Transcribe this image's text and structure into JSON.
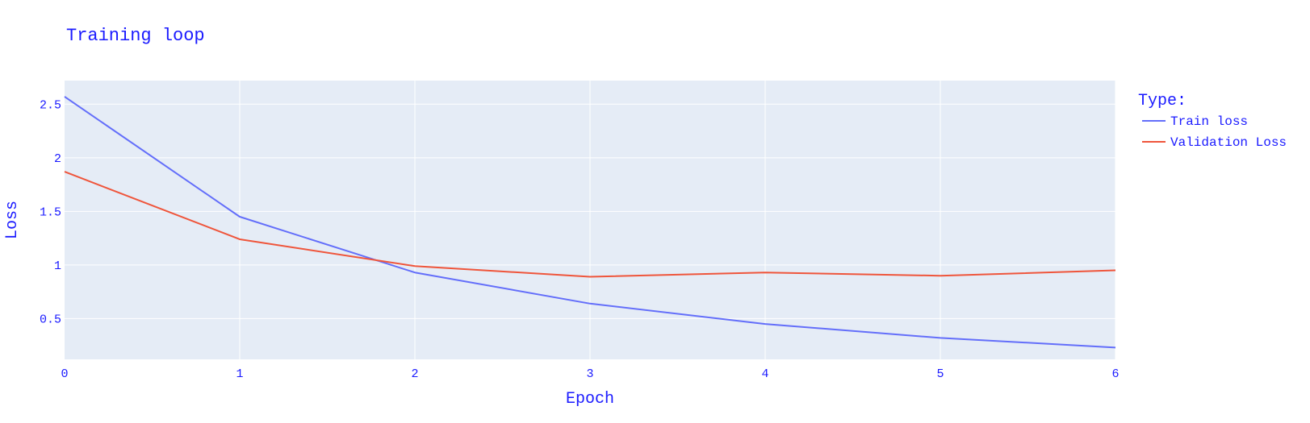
{
  "chart_data": {
    "type": "line",
    "title": "Training loop",
    "xlabel": "Epoch",
    "ylabel": "Loss",
    "xlim": [
      0,
      6
    ],
    "ylim": [
      0.12,
      2.72
    ],
    "x_ticks": [
      0,
      1,
      2,
      3,
      4,
      5,
      6
    ],
    "y_ticks": [
      0.5,
      1,
      1.5,
      2,
      2.5
    ],
    "grid": true,
    "legend": {
      "title": "Type:",
      "position": "right"
    },
    "x": [
      0,
      1,
      2,
      3,
      4,
      5,
      6
    ],
    "series": [
      {
        "name": "Train loss",
        "color": "#636efa",
        "values": [
          2.57,
          1.45,
          0.93,
          0.64,
          0.45,
          0.32,
          0.23
        ]
      },
      {
        "name": "Validation Loss",
        "color": "#ef553b",
        "values": [
          1.87,
          1.24,
          0.99,
          0.89,
          0.93,
          0.9,
          0.95
        ]
      }
    ],
    "colors": {
      "text": "#1a1aff",
      "plot_bg": "#e5ecf6",
      "grid": "#ffffff"
    }
  }
}
